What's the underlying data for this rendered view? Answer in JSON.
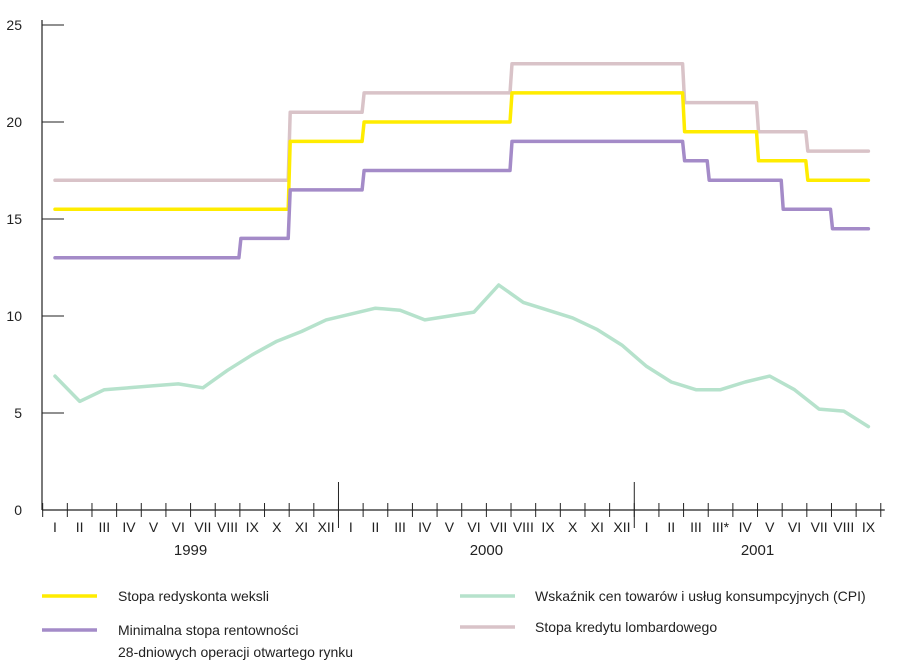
{
  "chart_data": {
    "type": "line",
    "title": "",
    "xlabel": "",
    "ylabel": "",
    "ylim": [
      0,
      25
    ],
    "y_ticks": [
      "0",
      "5",
      "10",
      "15",
      "20",
      "25"
    ],
    "grid": false,
    "legend_position": "bottom",
    "x_labels": [
      "I",
      "II",
      "III",
      "IV",
      "V",
      "VI",
      "VII",
      "VIII",
      "IX",
      "X",
      "XI",
      "XII",
      "I",
      "II",
      "III",
      "IV",
      "V",
      "VI",
      "VII",
      "VIII",
      "IX",
      "X",
      "XI",
      "XII",
      "I",
      "II",
      "III",
      "III*",
      "IV",
      "V",
      "VI",
      "VII",
      "VIII",
      "IX"
    ],
    "x_periods": [
      "1999-01",
      "1999-02",
      "1999-03",
      "1999-04",
      "1999-05",
      "1999-06",
      "1999-07",
      "1999-08",
      "1999-09",
      "1999-10",
      "1999-11",
      "1999-12",
      "2000-01",
      "2000-02",
      "2000-03",
      "2000-04",
      "2000-05",
      "2000-06",
      "2000-07",
      "2000-08",
      "2000-09",
      "2000-10",
      "2000-11",
      "2000-12",
      "2001-01",
      "2001-02",
      "2001-03",
      "2001-03*",
      "2001-04",
      "2001-05",
      "2001-06",
      "2001-07",
      "2001-08",
      "2001-09"
    ],
    "years": [
      {
        "label": "1999",
        "first": 0,
        "last": 11
      },
      {
        "label": "2000",
        "first": 12,
        "last": 23
      },
      {
        "label": "2001",
        "first": 24,
        "last": 33
      }
    ],
    "series": [
      {
        "name": "Stopa kredytu lombardowego",
        "color": "#d9c3c8",
        "step": true,
        "values": [
          17,
          17,
          17,
          17,
          17,
          17,
          17,
          17,
          17,
          17,
          20.5,
          20.5,
          20.5,
          21.5,
          21.5,
          21.5,
          21.5,
          21.5,
          21.5,
          23,
          23,
          23,
          23,
          23,
          23,
          23,
          21,
          21,
          21,
          19.5,
          19.5,
          18.5,
          18.5,
          18.5
        ]
      },
      {
        "name": "Stopa redyskonta weksli",
        "color": "#ffec00",
        "step": true,
        "values": [
          15.5,
          15.5,
          15.5,
          15.5,
          15.5,
          15.5,
          15.5,
          15.5,
          15.5,
          15.5,
          19,
          19,
          19,
          20,
          20,
          20,
          20,
          20,
          20,
          21.5,
          21.5,
          21.5,
          21.5,
          21.5,
          21.5,
          21.5,
          19.5,
          19.5,
          19.5,
          18,
          18,
          17,
          17,
          17
        ]
      },
      {
        "name": "Minimalna stopa rentowności 28-dniowych operacji otwartego rynku",
        "color": "#a48bc8",
        "step": true,
        "values": [
          13,
          13,
          13,
          13,
          13,
          13,
          13,
          13,
          14,
          14,
          16.5,
          16.5,
          16.5,
          17.5,
          17.5,
          17.5,
          17.5,
          17.5,
          17.5,
          19,
          19,
          19,
          19,
          19,
          19,
          19,
          18,
          17,
          17,
          17,
          15.5,
          15.5,
          14.5,
          14.5
        ]
      },
      {
        "name": "Wskaźnik cen towarów i usług konsumpcyjnych (CPI)",
        "color": "#b6e2cc",
        "step": false,
        "values": [
          6.9,
          5.6,
          6.2,
          6.3,
          6.4,
          6.5,
          6.3,
          7.2,
          8.0,
          8.7,
          9.2,
          9.8,
          10.1,
          10.4,
          10.3,
          9.8,
          10.0,
          10.2,
          11.6,
          10.7,
          10.3,
          9.9,
          9.3,
          8.5,
          7.4,
          6.6,
          6.2,
          6.2,
          6.6,
          6.9,
          6.2,
          5.2,
          5.1,
          4.3
        ]
      }
    ],
    "legend": [
      {
        "series": 1,
        "lines": [
          "Stopa redyskonta weksli"
        ]
      },
      {
        "series": 2,
        "lines": [
          "Minimalna stopa rentowności",
          "28-dniowych operacji otwartego rynku"
        ]
      },
      {
        "series": 3,
        "lines": [
          "Wskaźnik cen towarów i usług konsumpcyjnych (CPI)"
        ]
      },
      {
        "series": 0,
        "lines": [
          "Stopa kredytu lombardowego"
        ]
      }
    ]
  }
}
